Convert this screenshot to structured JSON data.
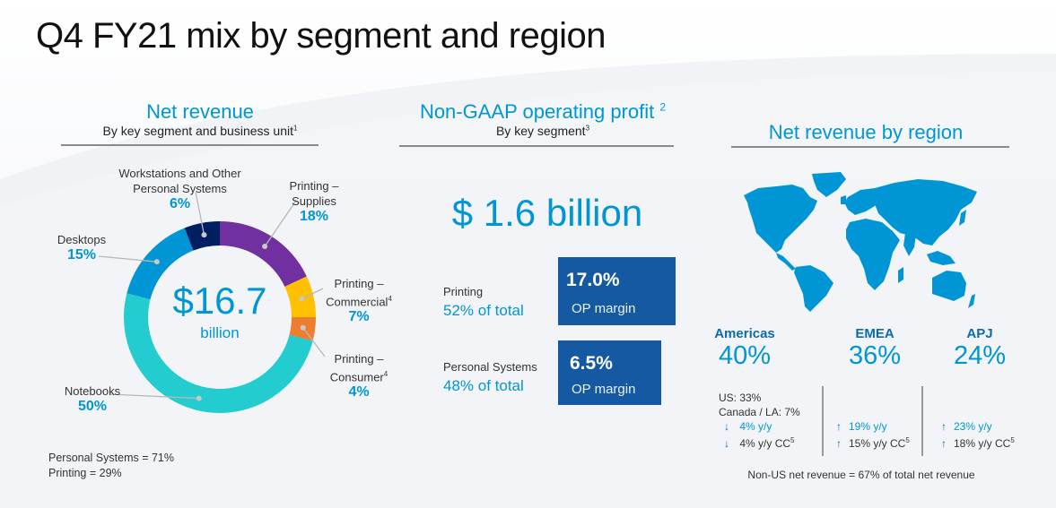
{
  "title": "Q4 FY21 mix by segment and region",
  "colors": {
    "accent": "#0096d6",
    "op_box": "#1559a3",
    "map": "#0096d6"
  },
  "net_revenue": {
    "heading": "Net revenue",
    "subheading": "By key segment and business unit",
    "subheading_sup": "1",
    "center_value": "$16.7",
    "center_unit": "billion",
    "summary": [
      "Personal Systems = 71%",
      "Printing = 29%"
    ]
  },
  "chart_data": {
    "type": "pie",
    "variant": "donut",
    "title": "Net revenue by key segment and business unit",
    "total": "$16.7 billion",
    "start_angle": "12 o'clock, clockwise",
    "slices": [
      {
        "label": "Printing – Supplies",
        "lines": [
          "Printing –",
          "Supplies"
        ],
        "sup": "",
        "value": 18,
        "display": "18%",
        "color": "#7030a0"
      },
      {
        "label": "Printing – Commercial",
        "lines": [
          "Printing –",
          "Commercial"
        ],
        "sup": "4",
        "value": 7,
        "display": "7%",
        "color": "#ffc000"
      },
      {
        "label": "Printing – Consumer",
        "lines": [
          "Printing –",
          "Consumer"
        ],
        "sup": "4",
        "value": 4,
        "display": "4%",
        "color": "#ed7d31"
      },
      {
        "label": "Notebooks",
        "lines": [
          "Notebooks"
        ],
        "sup": "",
        "value": 50,
        "display": "50%",
        "color": "#22cccf"
      },
      {
        "label": "Desktops",
        "lines": [
          "Desktops"
        ],
        "sup": "",
        "value": 15,
        "display": "15%",
        "color": "#0096d6"
      },
      {
        "label": "Workstations and Other Personal Systems",
        "lines": [
          "Workstations and Other",
          "Personal Systems"
        ],
        "sup": "",
        "value": 6,
        "display": "6%",
        "color": "#001f60"
      }
    ]
  },
  "op_profit": {
    "heading": "Non-GAAP operating profit",
    "heading_sup": "2",
    "subheading": "By key segment",
    "subheading_sup": "3",
    "total": "$ 1.6 billion",
    "segments": [
      {
        "name": "Printing",
        "share": "52% of total",
        "margin": "17.0%",
        "margin_label": "OP margin"
      },
      {
        "name": "Personal Systems",
        "share": "48% of total",
        "margin": "6.5%",
        "margin_label": "OP margin"
      }
    ]
  },
  "region": {
    "heading": "Net revenue by region",
    "map_icon": "world-map-icon",
    "regions": [
      {
        "name": "Americas",
        "pct": "40%",
        "details": [
          "US: 33%",
          "Canada / LA: 7%"
        ],
        "yy": {
          "dir": "down",
          "text": "4% y/y"
        },
        "cc": {
          "dir": "down",
          "text": "4% y/y  CC",
          "sup": "5"
        }
      },
      {
        "name": "EMEA",
        "pct": "36%",
        "details": [],
        "yy": {
          "dir": "up",
          "text": "19% y/y"
        },
        "cc": {
          "dir": "up",
          "text": "15% y/y  CC",
          "sup": "5"
        }
      },
      {
        "name": "APJ",
        "pct": "24%",
        "details": [],
        "yy": {
          "dir": "up",
          "text": "23% y/y"
        },
        "cc": {
          "dir": "up",
          "text": "18% y/y  CC",
          "sup": "5"
        }
      }
    ],
    "footer": "Non-US net revenue = 67% of total net revenue",
    "arrow_up": "↑",
    "arrow_down": "↓"
  }
}
